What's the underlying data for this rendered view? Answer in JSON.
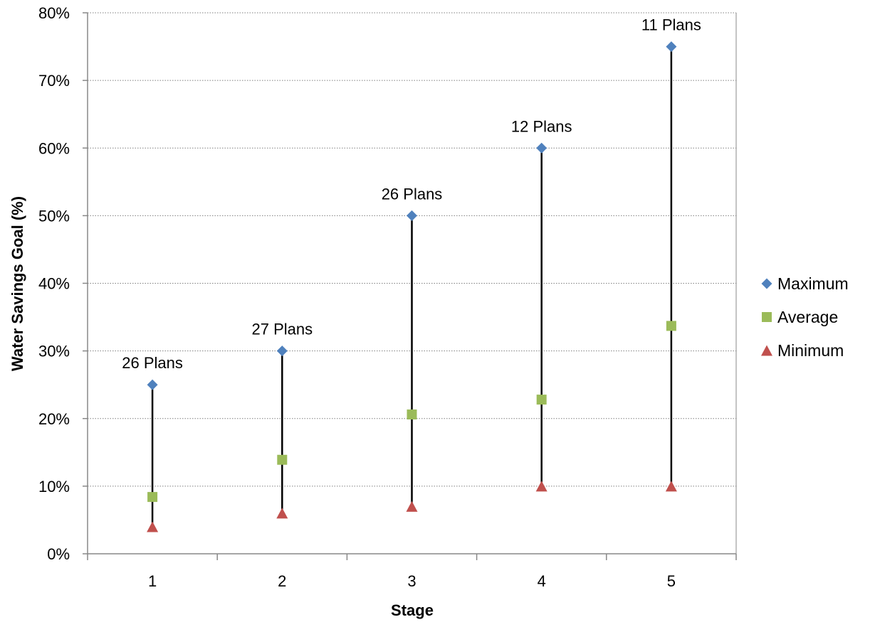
{
  "chart_data": {
    "type": "scatter",
    "title": "",
    "xlabel": "Stage",
    "ylabel": "Water Savings Goal (%)",
    "categories": [
      "1",
      "2",
      "3",
      "4",
      "5"
    ],
    "ylim": [
      0,
      80
    ],
    "y_ticks": [
      "0%",
      "10%",
      "20%",
      "30%",
      "40%",
      "50%",
      "60%",
      "70%",
      "80%"
    ],
    "y_tick_values": [
      0,
      10,
      20,
      30,
      40,
      50,
      60,
      70,
      80
    ],
    "grid": true,
    "legend_position": "right",
    "series": [
      {
        "name": "Maximum",
        "marker": "diamond",
        "color": "#4F81BD",
        "values": [
          25,
          30,
          50,
          60,
          75
        ]
      },
      {
        "name": "Average",
        "marker": "square",
        "color": "#9BBB59",
        "values": [
          8.4,
          13.9,
          20.6,
          22.8,
          33.7
        ]
      },
      {
        "name": "Minimum",
        "marker": "triangle",
        "color": "#C0504D",
        "values": [
          4,
          6,
          7,
          10,
          10
        ]
      }
    ],
    "range_line_color": "#000000",
    "annotations": [
      "26 Plans",
      "27 Plans",
      "26 Plans",
      "12 Plans",
      "11 Plans"
    ]
  }
}
